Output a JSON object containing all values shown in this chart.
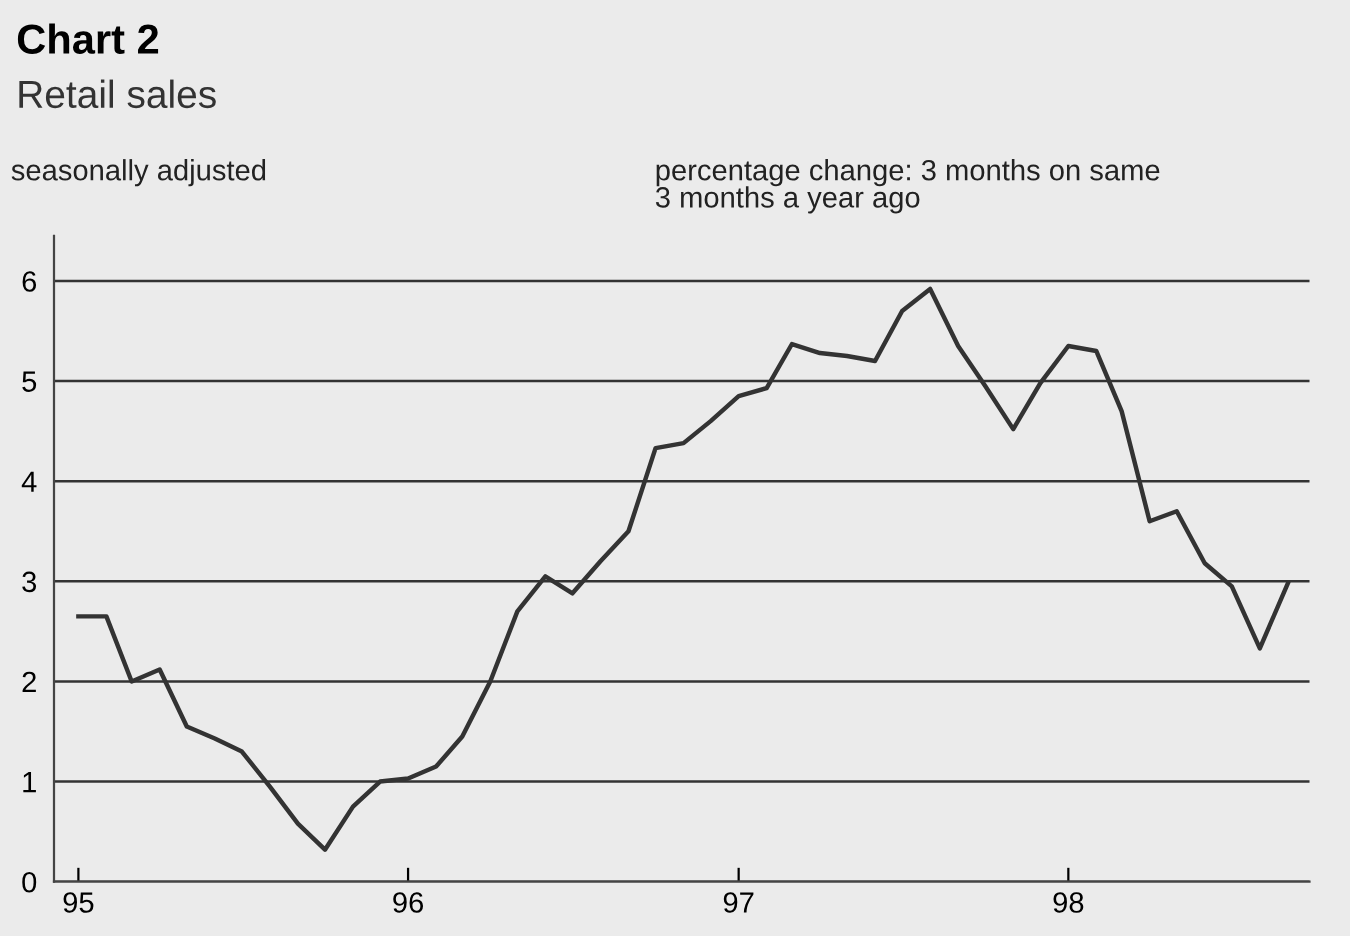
{
  "chart_data": {
    "type": "line",
    "title": "Chart 2",
    "subtitle": "Retail sales",
    "annotations": [
      "seasonally adjusted",
      "percentage change: 3 months on same\n3 months a year ago"
    ],
    "x": [
      "1995-01",
      "1995-02",
      "1995-03",
      "1995-04",
      "1995-05",
      "1995-06",
      "1995-07",
      "1995-08",
      "1995-09",
      "1995-10",
      "1995-11",
      "1995-12",
      "1996-01",
      "1996-02",
      "1996-03",
      "1996-04",
      "1996-05",
      "1996-06",
      "1996-07",
      "1996-08",
      "1996-09",
      "1996-10",
      "1996-11",
      "1996-12",
      "1997-01",
      "1997-02",
      "1997-03",
      "1997-04",
      "1997-05",
      "1997-06",
      "1997-07",
      "1997-08",
      "1997-09",
      "1997-10",
      "1997-11",
      "1997-12",
      "1998-01",
      "1998-02",
      "1998-03",
      "1998-04",
      "1998-05",
      "1998-06",
      "1998-07",
      "1998-08",
      "1998-09"
    ],
    "series": [
      {
        "color": "#333333",
        "values": [
          2.65,
          2.65,
          2.0,
          2.12,
          1.55,
          1.43,
          1.3,
          0.95,
          0.58,
          0.32,
          0.75,
          1.0,
          1.03,
          1.15,
          1.45,
          2.0,
          2.7,
          3.05,
          2.88,
          3.2,
          3.5,
          4.33,
          4.38,
          4.6,
          4.85,
          4.93,
          5.37,
          5.28,
          5.25,
          5.2,
          5.7,
          5.92,
          5.35,
          4.95,
          4.52,
          4.98,
          5.35,
          5.3,
          4.7,
          3.6,
          3.7,
          3.18,
          2.95,
          2.33,
          2.98
        ]
      }
    ],
    "xlim": [
      "1994-12-05",
      "1998-09-25"
    ],
    "xticks": [
      {
        "value": "1995-01",
        "label": "95"
      },
      {
        "value": "1996-01",
        "label": "96"
      },
      {
        "value": "1997-01",
        "label": "97"
      },
      {
        "value": "1998-01",
        "label": "98"
      }
    ],
    "ylim": [
      0,
      6.45
    ],
    "yticks": [
      0,
      1,
      2,
      3,
      4,
      5,
      6
    ],
    "grid": "y",
    "marker": "none",
    "line_style": "solid"
  }
}
